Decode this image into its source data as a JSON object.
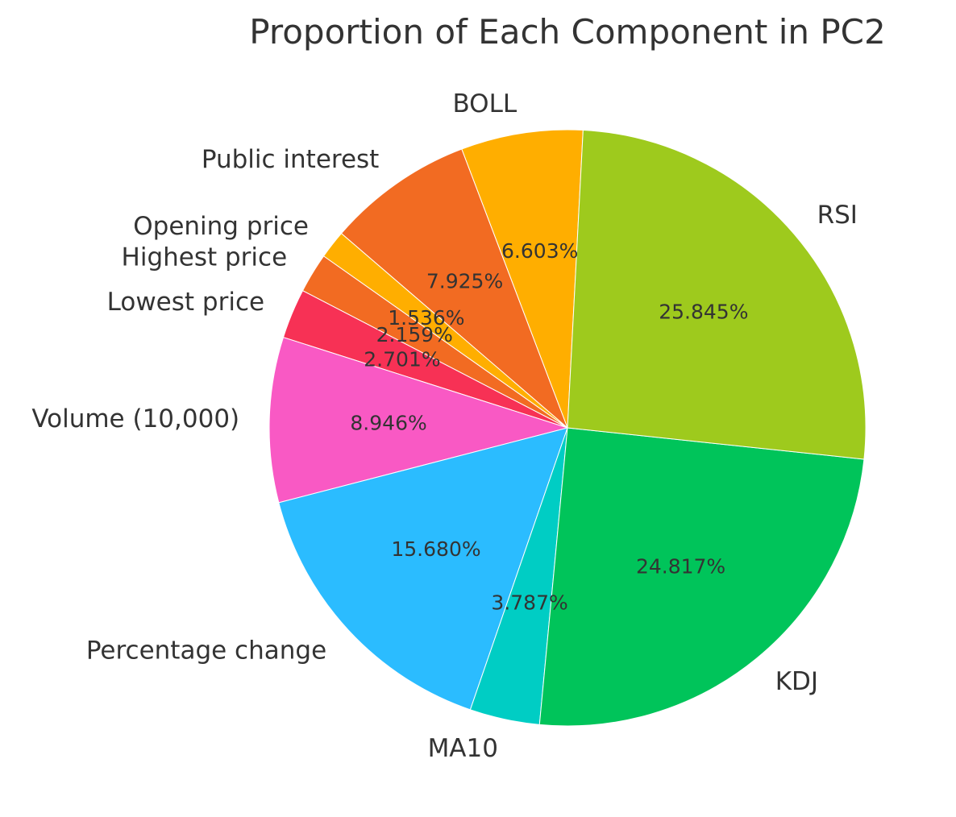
{
  "chart_data": {
    "type": "pie",
    "title": "Proportion of Each Component in PC2",
    "start_angle_deg": 87,
    "direction": "counterclockwise",
    "slices": [
      {
        "label": "BOLL",
        "value": 6.603,
        "pct_text": "6.603%",
        "color": "#FFAE00"
      },
      {
        "label": "Public interest",
        "value": 7.925,
        "pct_text": "7.925%",
        "color": "#F26B22"
      },
      {
        "label": "Opening price",
        "value": 1.536,
        "pct_text": "1.536%",
        "color": "#FFAE00"
      },
      {
        "label": "Highest price",
        "value": 2.159,
        "pct_text": "2.159%",
        "color": "#F26B22"
      },
      {
        "label": "Lowest price",
        "value": 2.701,
        "pct_text": "2.701%",
        "color": "#F73155"
      },
      {
        "label": "Volume (10,000)",
        "value": 8.946,
        "pct_text": "8.946%",
        "color": "#F959C4"
      },
      {
        "label": "Percentage change",
        "value": 15.68,
        "pct_text": "15.680%",
        "color": "#2BBCFF"
      },
      {
        "label": "MA10",
        "value": 3.787,
        "pct_text": "3.787%",
        "color": "#00CDC4"
      },
      {
        "label": "KDJ",
        "value": 24.817,
        "pct_text": "24.817%",
        "color": "#00C45A"
      },
      {
        "label": "RSI",
        "value": 25.845,
        "pct_text": "25.845%",
        "color": "#9ECA1D"
      }
    ]
  }
}
